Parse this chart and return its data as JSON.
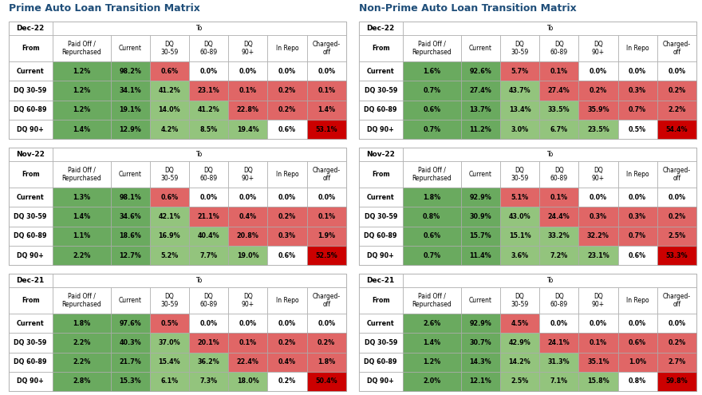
{
  "title_left": "Prime Auto Loan Transition Matrix",
  "title_right": "Non-Prime Auto Loan Transition Matrix",
  "col_headers": [
    "Paid Off /\nRepurchased",
    "Current",
    "DQ\n30-59",
    "DQ\n60-89",
    "DQ\n90+",
    "In Repo",
    "Charged-\noff"
  ],
  "row_headers": [
    "Current",
    "DQ 30-59",
    "DQ 60-89",
    "DQ 90+"
  ],
  "period_labels": [
    "Dec-22",
    "Nov-22",
    "Dec-21"
  ],
  "prime_data": {
    "Dec-22": [
      [
        "1.2%",
        "98.2%",
        "0.6%",
        "0.0%",
        "0.0%",
        "0.0%",
        "0.0%"
      ],
      [
        "1.2%",
        "34.1%",
        "41.2%",
        "23.1%",
        "0.1%",
        "0.2%",
        "0.1%"
      ],
      [
        "1.2%",
        "19.1%",
        "14.0%",
        "41.2%",
        "22.8%",
        "0.2%",
        "1.4%"
      ],
      [
        "1.4%",
        "12.9%",
        "4.2%",
        "8.5%",
        "19.4%",
        "0.6%",
        "53.1%"
      ]
    ],
    "Nov-22": [
      [
        "1.3%",
        "98.1%",
        "0.6%",
        "0.0%",
        "0.0%",
        "0.0%",
        "0.0%"
      ],
      [
        "1.4%",
        "34.6%",
        "42.1%",
        "21.1%",
        "0.4%",
        "0.2%",
        "0.1%"
      ],
      [
        "1.1%",
        "18.6%",
        "16.9%",
        "40.4%",
        "20.8%",
        "0.3%",
        "1.9%"
      ],
      [
        "2.2%",
        "12.7%",
        "5.2%",
        "7.7%",
        "19.0%",
        "0.6%",
        "52.5%"
      ]
    ],
    "Dec-21": [
      [
        "1.8%",
        "97.6%",
        "0.5%",
        "0.0%",
        "0.0%",
        "0.0%",
        "0.0%"
      ],
      [
        "2.2%",
        "40.3%",
        "37.0%",
        "20.1%",
        "0.1%",
        "0.2%",
        "0.2%"
      ],
      [
        "2.2%",
        "21.7%",
        "15.4%",
        "36.2%",
        "22.4%",
        "0.4%",
        "1.8%"
      ],
      [
        "2.8%",
        "15.3%",
        "6.1%",
        "7.3%",
        "18.0%",
        "0.2%",
        "50.4%"
      ]
    ]
  },
  "nonprime_data": {
    "Dec-22": [
      [
        "1.6%",
        "92.6%",
        "5.7%",
        "0.1%",
        "0.0%",
        "0.0%",
        "0.0%"
      ],
      [
        "0.7%",
        "27.4%",
        "43.7%",
        "27.4%",
        "0.2%",
        "0.3%",
        "0.2%"
      ],
      [
        "0.6%",
        "13.7%",
        "13.4%",
        "33.5%",
        "35.9%",
        "0.7%",
        "2.2%"
      ],
      [
        "0.7%",
        "11.2%",
        "3.0%",
        "6.7%",
        "23.5%",
        "0.5%",
        "54.4%"
      ]
    ],
    "Nov-22": [
      [
        "1.8%",
        "92.9%",
        "5.1%",
        "0.1%",
        "0.0%",
        "0.0%",
        "0.0%"
      ],
      [
        "0.8%",
        "30.9%",
        "43.0%",
        "24.4%",
        "0.3%",
        "0.3%",
        "0.2%"
      ],
      [
        "0.6%",
        "15.7%",
        "15.1%",
        "33.2%",
        "32.2%",
        "0.7%",
        "2.5%"
      ],
      [
        "0.7%",
        "11.4%",
        "3.6%",
        "7.2%",
        "23.1%",
        "0.6%",
        "53.3%"
      ]
    ],
    "Dec-21": [
      [
        "2.6%",
        "92.9%",
        "4.5%",
        "0.0%",
        "0.0%",
        "0.0%",
        "0.0%"
      ],
      [
        "1.4%",
        "30.7%",
        "42.9%",
        "24.1%",
        "0.1%",
        "0.6%",
        "0.2%"
      ],
      [
        "1.2%",
        "14.3%",
        "14.2%",
        "31.3%",
        "35.1%",
        "1.0%",
        "2.7%"
      ],
      [
        "2.0%",
        "12.1%",
        "2.5%",
        "7.1%",
        "15.8%",
        "0.8%",
        "59.8%"
      ]
    ]
  },
  "color_green": "#6aaa5f",
  "color_light_green": "#93c47d",
  "color_light_red": "#e06666",
  "color_dark_red": "#cc0000",
  "color_mid_red": "#e06666",
  "color_white": "#ffffff",
  "color_border": "#aaaaaa",
  "title_color": "#1f4e79",
  "bg_color": "#ffffff",
  "title_fontsize": 9,
  "period_fontsize": 6.5,
  "header_fontsize": 5.8,
  "cell_fontsize": 5.8,
  "row_label_fontsize": 5.8
}
